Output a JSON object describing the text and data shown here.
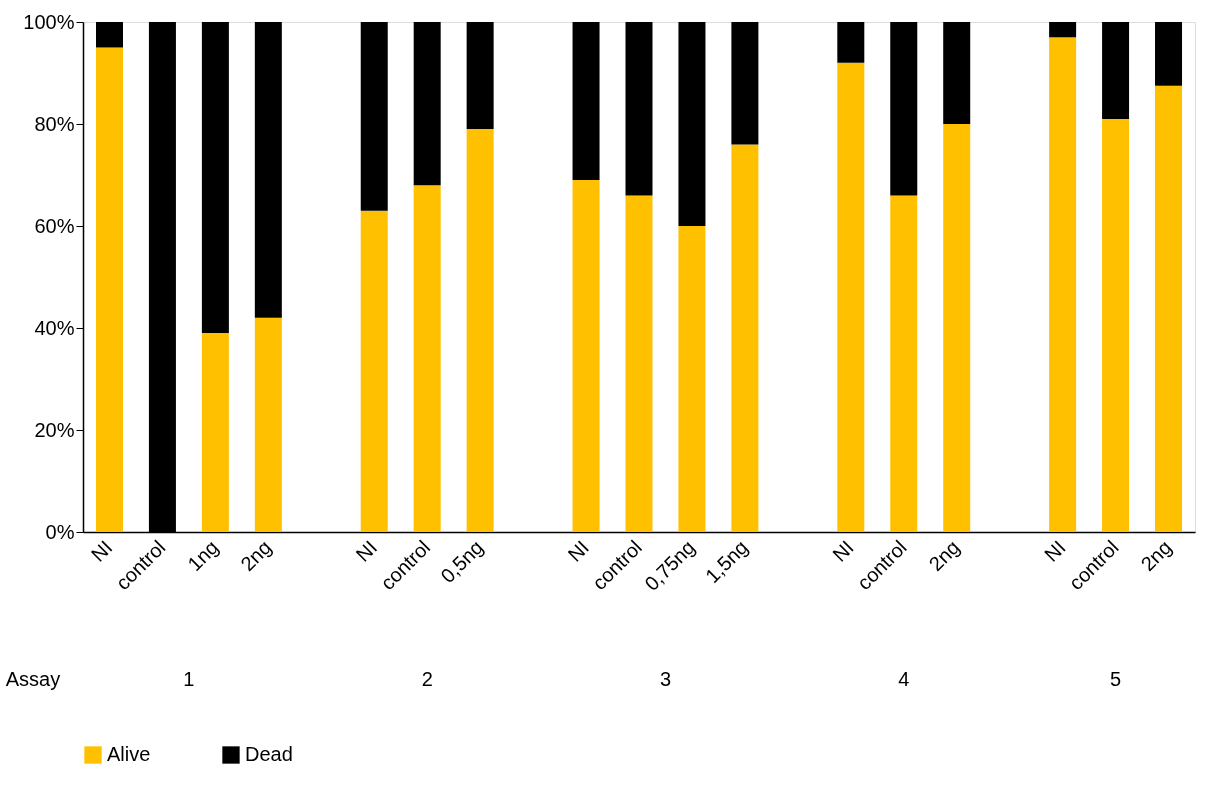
{
  "chart_data": {
    "type": "bar",
    "stacked": true,
    "categories": [
      "NI",
      "control",
      "1ng",
      "2ng",
      null,
      "NI",
      "control",
      "0,5ng",
      null,
      "NI",
      "control",
      "0,75ng",
      "1,5ng",
      null,
      "NI",
      "control",
      "2ng",
      null,
      "NI",
      "control",
      "2ng"
    ],
    "series": [
      {
        "name": "Alive",
        "color": "#ffc000",
        "values": [
          95,
          0,
          39,
          42,
          null,
          63,
          68,
          79,
          null,
          69,
          66,
          60,
          76,
          null,
          92,
          66,
          80,
          null,
          97,
          81,
          87.5
        ]
      },
      {
        "name": "Dead",
        "color": "#000000",
        "values": [
          5,
          100,
          61,
          58,
          null,
          37,
          32,
          21,
          null,
          31,
          34,
          40,
          24,
          null,
          8,
          34,
          20,
          null,
          3,
          19,
          12.5
        ]
      }
    ],
    "ylim": [
      0,
      100
    ],
    "yticks": [
      {
        "value": 0,
        "label": "0%"
      },
      {
        "value": 20,
        "label": "20%"
      },
      {
        "value": 40,
        "label": "40%"
      },
      {
        "value": 60,
        "label": "60%"
      },
      {
        "value": 80,
        "label": "80%"
      },
      {
        "value": 100,
        "label": "100%"
      }
    ],
    "annotations": [
      "Assay",
      "1",
      "2",
      "3",
      "4",
      "5"
    ],
    "legend": "bottom",
    "grid": false
  }
}
